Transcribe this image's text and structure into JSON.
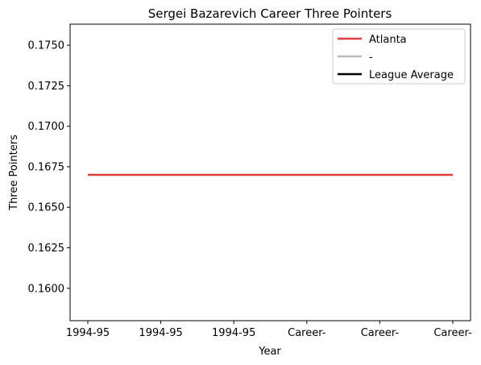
{
  "chart_data": {
    "type": "line",
    "title": "Sergei Bazarevich Career Three Pointers",
    "xlabel": "Year",
    "ylabel": "Three Pointers",
    "categories": [
      "1994-95",
      "1994-95",
      "1994-95",
      "Career-",
      "Career-",
      "Career-"
    ],
    "ylim": [
      0.158,
      0.1763
    ],
    "yticks": [
      "0.1600",
      "0.1625",
      "0.1650",
      "0.1675",
      "0.1700",
      "0.1725",
      "0.1750"
    ],
    "series": [
      {
        "name": "Atlanta",
        "color": "#e03c3c",
        "values": [
          0.167,
          0.167,
          0.167,
          0.167,
          0.167,
          0.167
        ]
      }
    ],
    "legend": {
      "placement": "top-right",
      "entries": [
        {
          "label": "Atlanta",
          "color": "#e03c3c"
        },
        {
          "label": "-",
          "color": "#bbbbbb"
        },
        {
          "label": "League Average",
          "color": "#000000"
        }
      ]
    },
    "grid": false
  }
}
